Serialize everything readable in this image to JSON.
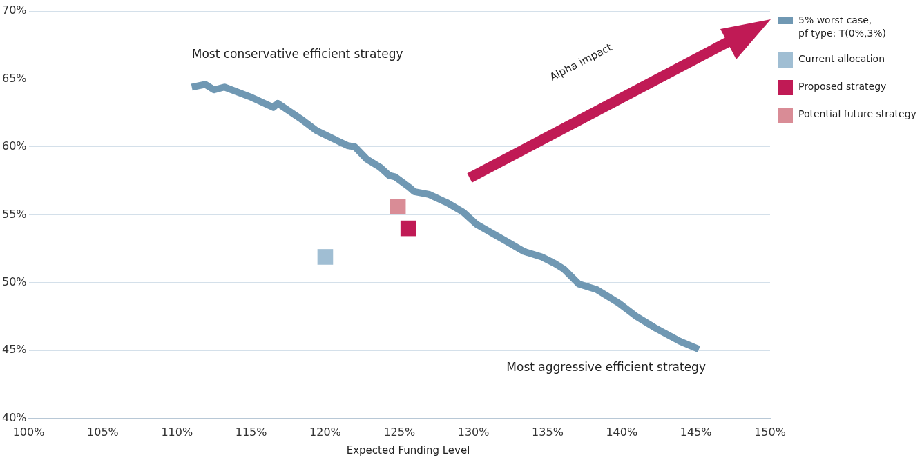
{
  "chart_data": {
    "type": "scatter",
    "xlabel": "Expected Funding Level",
    "xlim": [
      100,
      150
    ],
    "xticks": [
      {
        "value": 100,
        "label": "100%"
      },
      {
        "value": 105,
        "label": "105%"
      },
      {
        "value": 110,
        "label": "110%"
      },
      {
        "value": 115,
        "label": "115%"
      },
      {
        "value": 120,
        "label": "120%"
      },
      {
        "value": 125,
        "label": "125%"
      },
      {
        "value": 130,
        "label": "130%"
      },
      {
        "value": 135,
        "label": "135%"
      },
      {
        "value": 140,
        "label": "140%"
      },
      {
        "value": 145,
        "label": "145%"
      },
      {
        "value": 150,
        "label": "150%"
      }
    ],
    "ylim": [
      40,
      70
    ],
    "yticks": [
      {
        "value": 40,
        "label": "40%"
      },
      {
        "value": 45,
        "label": "45%"
      },
      {
        "value": 50,
        "label": "50%"
      },
      {
        "value": 55,
        "label": "55%"
      },
      {
        "value": 60,
        "label": "60%"
      },
      {
        "value": 65,
        "label": "65%"
      },
      {
        "value": 70,
        "label": "70%"
      }
    ],
    "grid": "y",
    "legend": "right",
    "series": [
      {
        "name": "5% worst case,\npf type: T(0%,3%)",
        "type": "line",
        "marker": "none",
        "color": "#7098b3",
        "x": [
          111.0,
          111.9,
          112.5,
          113.2,
          114.9,
          116.5,
          116.8,
          118.3,
          119.4,
          121.1,
          121.5,
          122.0,
          122.8,
          123.7,
          124.3,
          124.7,
          125.7,
          126.0,
          127.0,
          128.2,
          129.3,
          130.2,
          132.3,
          133.4,
          134.6,
          135.5,
          136.1,
          137.1,
          138.3,
          139.8,
          141.0,
          142.2,
          143.9,
          145.2
        ],
        "values": [
          64.4,
          64.6,
          64.2,
          64.4,
          63.7,
          62.9,
          63.2,
          62.1,
          61.2,
          60.3,
          60.1,
          60.0,
          59.1,
          58.5,
          57.9,
          57.8,
          57.0,
          56.7,
          56.5,
          55.9,
          55.2,
          54.3,
          53.0,
          52.3,
          51.9,
          51.4,
          51.0,
          49.9,
          49.5,
          48.5,
          47.5,
          46.7,
          45.7,
          45.1
        ]
      },
      {
        "name": "Current allocation",
        "type": "scatter",
        "marker": "square",
        "color": "#a0bed3",
        "x": [
          120.0
        ],
        "values": [
          51.9
        ]
      },
      {
        "name": "Proposed strategy",
        "type": "scatter",
        "marker": "square",
        "color": "#c01a55",
        "x": [
          125.6
        ],
        "values": [
          54.0
        ]
      },
      {
        "name": "Potential future strategy",
        "type": "scatter",
        "marker": "square",
        "color": "#d98c96",
        "x": [
          124.9
        ],
        "values": [
          55.6
        ]
      }
    ],
    "annotations": [
      {
        "text": "Most conservative efficient strategy",
        "x": 111.0,
        "y": 64.4
      },
      {
        "text": "Most aggressive efficient strategy",
        "x": 145.2,
        "y": 45.1
      },
      "Alpha impact"
    ]
  }
}
